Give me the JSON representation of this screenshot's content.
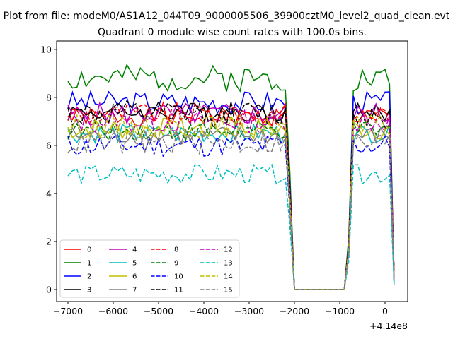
{
  "figure": {
    "suptitle": "Plot from file: modeM0/AS1A12_044T09_9000005506_39900cztM0_level2_quad_clean.evt"
  },
  "chart_data": {
    "type": "line",
    "title": "Quadrant 0 module wise count rates with 100.0s bins.",
    "xlabel": "",
    "ylabel": "",
    "x_offset_label": "+4.14e8",
    "xlim": [
      -7250,
      500
    ],
    "ylim": [
      -0.5,
      10.35
    ],
    "xticks": [
      -7000,
      -6000,
      -5000,
      -4000,
      -3000,
      -2000,
      -1000,
      0
    ],
    "xtick_labels": [
      "−7000",
      "−6000",
      "−5000",
      "−4000",
      "−3000",
      "−2000",
      "−1000",
      "0"
    ],
    "yticks": [
      0,
      2,
      4,
      6,
      8,
      10
    ],
    "ytick_labels": [
      "0",
      "2",
      "4",
      "6",
      "8",
      "10"
    ],
    "grid": false,
    "legend_position": "lower-left",
    "legend_columns": 4,
    "x_start": -7000,
    "x_step": 100,
    "gap_start": -2000,
    "gap_end": -900,
    "x_end": 200,
    "series": [
      {
        "name": "0",
        "color": "#ff0000",
        "dash": "solid",
        "base": 7.2,
        "amp": 0.25,
        "seed": 1,
        "plot_value": 0.0
      },
      {
        "name": "1",
        "color": "#008000",
        "dash": "solid",
        "base": 8.8,
        "amp": 0.35,
        "seed": 2,
        "plot_value": 0.0
      },
      {
        "name": "2",
        "color": "#0000ff",
        "dash": "solid",
        "base": 7.8,
        "amp": 0.3,
        "seed": 3,
        "plot_value": 0.0
      },
      {
        "name": "3",
        "color": "#000000",
        "dash": "solid",
        "base": 7.4,
        "amp": 0.25,
        "seed": 4,
        "plot_value": 0.0
      },
      {
        "name": "4",
        "color": "#bf00bf",
        "dash": "solid",
        "base": 7.3,
        "amp": 0.3,
        "seed": 5,
        "plot_value": 0.0
      },
      {
        "name": "5",
        "color": "#00bfbf",
        "dash": "solid",
        "base": 6.5,
        "amp": 0.25,
        "seed": 6,
        "plot_value": 0.0
      },
      {
        "name": "6",
        "color": "#bfbf00",
        "dash": "solid",
        "base": 6.7,
        "amp": 0.3,
        "seed": 7,
        "plot_value": 0.0
      },
      {
        "name": "7",
        "color": "#808080",
        "dash": "solid",
        "base": 6.4,
        "amp": 0.25,
        "seed": 8,
        "plot_value": 0.0
      },
      {
        "name": "8",
        "color": "#ff0000",
        "dash": "dashed",
        "base": 7.3,
        "amp": 0.3,
        "seed": 9,
        "plot_value": 0.0
      },
      {
        "name": "9",
        "color": "#008000",
        "dash": "dashed",
        "base": 6.6,
        "amp": 0.25,
        "seed": 10,
        "plot_value": 0.0
      },
      {
        "name": "10",
        "color": "#0000ff",
        "dash": "dashed",
        "base": 6.0,
        "amp": 0.3,
        "seed": 11,
        "plot_value": 0.0
      },
      {
        "name": "11",
        "color": "#000000",
        "dash": "dashed",
        "base": 7.3,
        "amp": 0.35,
        "seed": 12,
        "plot_value": 0.0
      },
      {
        "name": "12",
        "color": "#bf00bf",
        "dash": "dashed",
        "base": 7.0,
        "amp": 0.3,
        "seed": 13,
        "plot_value": 0.0
      },
      {
        "name": "13",
        "color": "#00bfbf",
        "dash": "dashed",
        "base": 4.8,
        "amp": 0.25,
        "seed": 14,
        "plot_value": 0.0
      },
      {
        "name": "14",
        "color": "#bfbf00",
        "dash": "dashed",
        "base": 6.8,
        "amp": 0.3,
        "seed": 15,
        "plot_value": 0.0
      },
      {
        "name": "15",
        "color": "#808080",
        "dash": "dashed",
        "base": 6.1,
        "amp": 0.3,
        "seed": 16,
        "plot_value": 0.0
      }
    ]
  }
}
